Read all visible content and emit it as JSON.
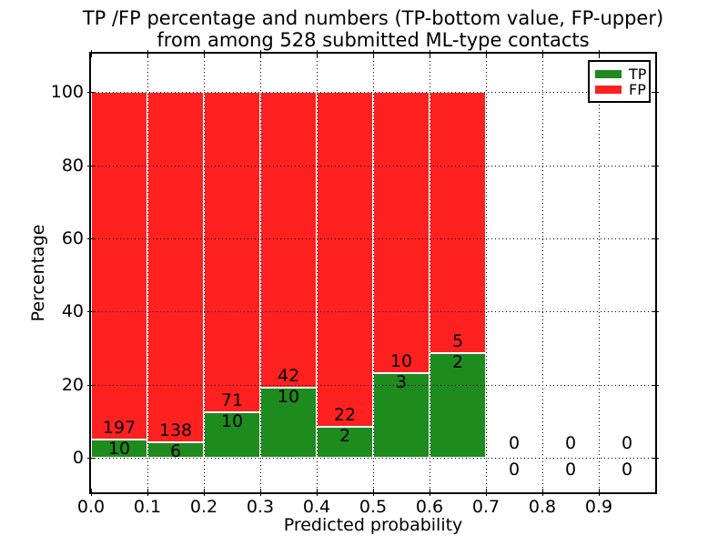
{
  "chart_data": {
    "type": "bar",
    "stacked": true,
    "unit": "percent",
    "title_line1": "TP /FP percentage and numbers (TP-bottom value, FP-upper)",
    "title_line2": "from among 528 submitted ML-type contacts",
    "xlabel": "Predicted probability",
    "ylabel": "Percentage",
    "total_contacts": 528,
    "bin_width": 0.1,
    "bins_left_edges": [
      0.0,
      0.1,
      0.2,
      0.3,
      0.4,
      0.5,
      0.6,
      0.7,
      0.8,
      0.9
    ],
    "series": [
      {
        "name": "TP",
        "color": "#1e8b1e",
        "counts": [
          10,
          6,
          10,
          10,
          2,
          3,
          2,
          0,
          0,
          0
        ]
      },
      {
        "name": "FP",
        "color": "#ff2020",
        "counts": [
          197,
          138,
          71,
          42,
          22,
          10,
          5,
          0,
          0,
          0
        ]
      }
    ],
    "tp_percent_approx": [
      4.8,
      4.2,
      12.3,
      19.2,
      8.3,
      23.1,
      28.6,
      0,
      0,
      0
    ],
    "x_ticks": [
      "0.0",
      "0.1",
      "0.2",
      "0.3",
      "0.4",
      "0.5",
      "0.6",
      "0.7",
      "0.8",
      "0.9"
    ],
    "y_ticks": [
      "0",
      "20",
      "40",
      "60",
      "80",
      "100"
    ],
    "xlim": [
      0.0,
      1.0
    ],
    "ylim": [
      -9.5,
      110.5
    ],
    "grid": true,
    "grid_style": "dotted",
    "bar_edge_color": "#ffffff",
    "legend": {
      "position": "upper right",
      "entries": [
        {
          "label": "TP",
          "color": "#1e8b1e"
        },
        {
          "label": "FP",
          "color": "#ff2020"
        }
      ]
    }
  }
}
